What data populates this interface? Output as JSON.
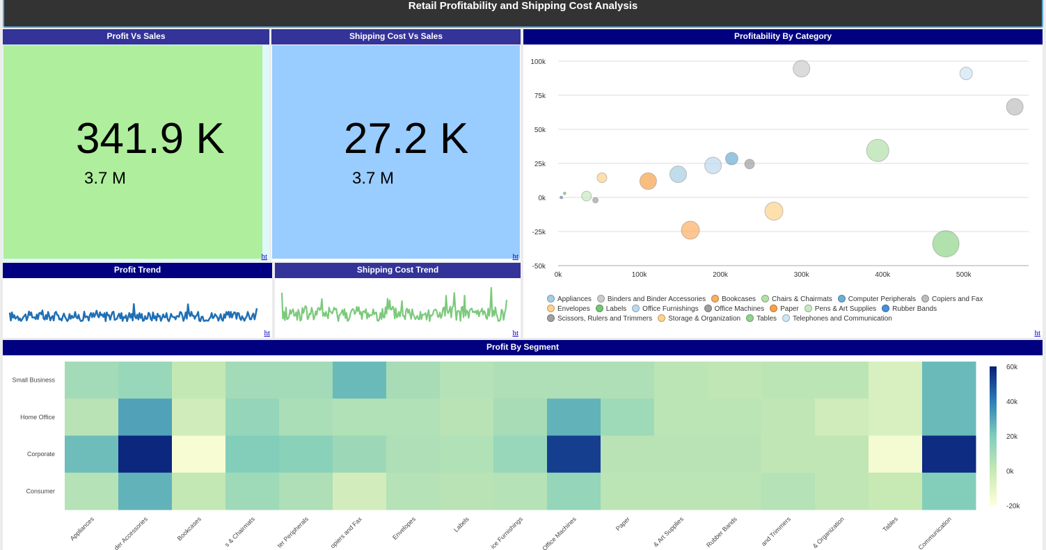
{
  "header": {
    "title": "Retail Profitability and Shipping Cost Analysis"
  },
  "link_label": "ht",
  "profit_vs_sales": {
    "title": "Profit Vs Sales",
    "value": "341.9 K",
    "target": "3.7 M",
    "color": "#aeee9c"
  },
  "shipping_vs_sales": {
    "title": "Shipping Cost Vs Sales",
    "value": "27.2 K",
    "target": "3.7 M",
    "color": "#99ccff"
  },
  "profit_trend": {
    "title": "Profit Trend",
    "color": "#1f6fb5"
  },
  "shipping_trend": {
    "title": "Shipping Cost Trend",
    "color": "#7cc97c"
  },
  "category": {
    "title": "Profitability By Category",
    "chart_data": {
      "type": "scatter",
      "xlim": [
        0,
        580000
      ],
      "ylim": [
        -50000,
        100000
      ],
      "xticks": [
        "0k",
        "100k",
        "200k",
        "300k",
        "400k",
        "500k"
      ],
      "yticks": [
        "100k",
        "75k",
        "50k",
        "25k",
        "0k",
        "-25k",
        "-50k"
      ],
      "grid": true,
      "legend": "bottom",
      "series": [
        {
          "name": "Appliances",
          "x": 148000,
          "y": 17000,
          "r": 12,
          "color": "#a6cee3"
        },
        {
          "name": "Binders and Binder Accessories",
          "x": 300000,
          "y": 94500,
          "r": 12,
          "color": "#cccccc"
        },
        {
          "name": "Bookcases",
          "x": 163000,
          "y": -24000,
          "r": 13,
          "color": "#fdae61"
        },
        {
          "name": "Chairs & Chairmats",
          "x": 394000,
          "y": 34500,
          "r": 16,
          "color": "#b2e0a8"
        },
        {
          "name": "Computer Peripherals",
          "x": 214000,
          "y": 28500,
          "r": 9,
          "color": "#6baed6"
        },
        {
          "name": "Copiers and Fax",
          "x": 563000,
          "y": 66500,
          "r": 12,
          "color": "#bdbdbd"
        },
        {
          "name": "Envelopes",
          "x": 54000,
          "y": 14500,
          "r": 7,
          "color": "#fdd38a"
        },
        {
          "name": "Labels",
          "x": 8000,
          "y": 3000,
          "r": 2,
          "color": "#74c476"
        },
        {
          "name": "Office Furnishings",
          "x": 191000,
          "y": 23500,
          "r": 12,
          "color": "#bcd9ee"
        },
        {
          "name": "Office Machines",
          "x": 236000,
          "y": 24500,
          "r": 7,
          "color": "#9e9e9e"
        },
        {
          "name": "Paper",
          "x": 111000,
          "y": 12000,
          "r": 12,
          "color": "#f7a248"
        },
        {
          "name": "Pens & Art Supplies",
          "x": 35000,
          "y": 1000,
          "r": 7,
          "color": "#c7e9c0"
        },
        {
          "name": "Rubber Bands",
          "x": 4000,
          "y": 0,
          "r": 2,
          "color": "#4a90d9"
        },
        {
          "name": "Scissors, Rulers and Trimmers",
          "x": 46000,
          "y": -2000,
          "r": 4,
          "color": "#a0a0a0"
        },
        {
          "name": "Storage & Organization",
          "x": 266000,
          "y": -10000,
          "r": 13,
          "color": "#fdd38a"
        },
        {
          "name": "Tables",
          "x": 478000,
          "y": -34000,
          "r": 19,
          "color": "#90d48a"
        },
        {
          "name": "Telephones and Communication",
          "x": 503000,
          "y": 91000,
          "r": 9,
          "color": "#cfe6f3"
        }
      ]
    }
  },
  "segment": {
    "title": "Profit By Segment",
    "chart_data": {
      "type": "heatmap",
      "rows": [
        "Small Business",
        "Home Office",
        "Corporate",
        "Consumer"
      ],
      "columns": [
        "Appliances",
        "Binders and Binder Accessories",
        "Bookcases",
        "Chairs & Chairmats",
        "Computer Peripherals",
        "Copiers and Fax",
        "Envelopes",
        "Labels",
        "Office Furnishings",
        "Office Machines",
        "Paper",
        "Pens & Art Supplies",
        "Rubber Bands",
        "Scissors, Rulers and Trimmers",
        "Storage & Organization",
        "Tables",
        "Telephones and Communication"
      ],
      "column_labels": [
        "Appliances",
        "der Accessories",
        "Bookcases",
        "s & Chairmats",
        "ter Peripherals",
        "opiers and Fax",
        "Envelopes",
        "Labels",
        "ice Furnishings",
        "Office Machines",
        "Paper",
        "& Art Supplies",
        "Rubber Bands",
        "and Trimmers",
        "& Organization",
        "Tables",
        "Communication"
      ],
      "values": [
        [
          10000,
          13000,
          1000,
          10000,
          10000,
          25000,
          9000,
          5000,
          7000,
          7000,
          7000,
          3000,
          2000,
          3000,
          3000,
          -6000,
          25000
        ],
        [
          4000,
          31000,
          -3000,
          14000,
          8000,
          6000,
          6000,
          4000,
          9000,
          27000,
          11000,
          3000,
          3000,
          2000,
          -3000,
          -6000,
          25000
        ],
        [
          24000,
          58000,
          -17000,
          19000,
          17000,
          12000,
          7000,
          6000,
          13000,
          53000,
          4000,
          4000,
          4000,
          2000,
          2000,
          -16000,
          57000
        ],
        [
          5000,
          27000,
          1000,
          11000,
          7000,
          -4000,
          5000,
          4000,
          5000,
          14000,
          3000,
          3000,
          3000,
          5000,
          2000,
          0,
          19000
        ]
      ],
      "scale": [
        "60k",
        "40k",
        "20k",
        "0k",
        "-20k"
      ],
      "zlim": [
        -20000,
        60000
      ]
    }
  }
}
